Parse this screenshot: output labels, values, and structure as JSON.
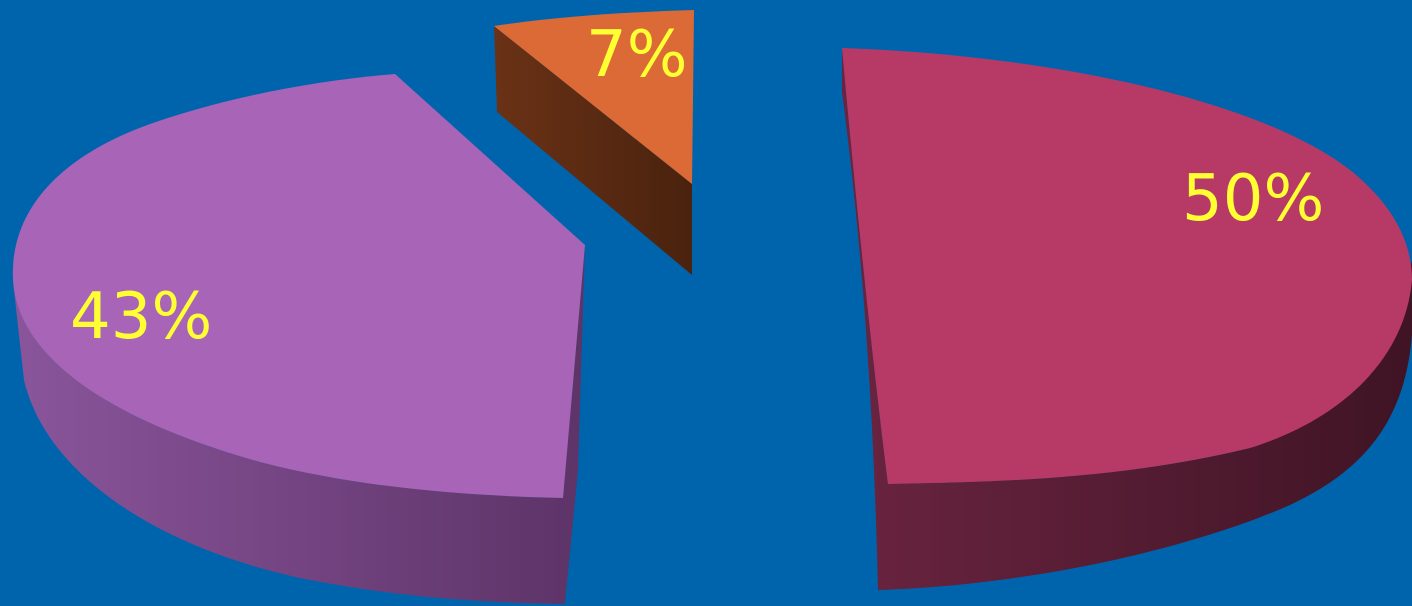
{
  "background_color": "#0064ad",
  "label_color": "#ffff33",
  "chart_data": {
    "type": "pie",
    "three_d": true,
    "exploded": true,
    "title": "",
    "legend": "none",
    "slices": [
      {
        "value": 50,
        "label": "50%",
        "top_color": "#b73a66",
        "side_color": "#4f1a2c"
      },
      {
        "value": 43,
        "label": "43%",
        "top_color": "#a864b6",
        "side_color": "#6b3d76"
      },
      {
        "value": 7,
        "label": "7%",
        "top_color": "#dc6a36",
        "side_color": "#5a2a12"
      }
    ]
  }
}
